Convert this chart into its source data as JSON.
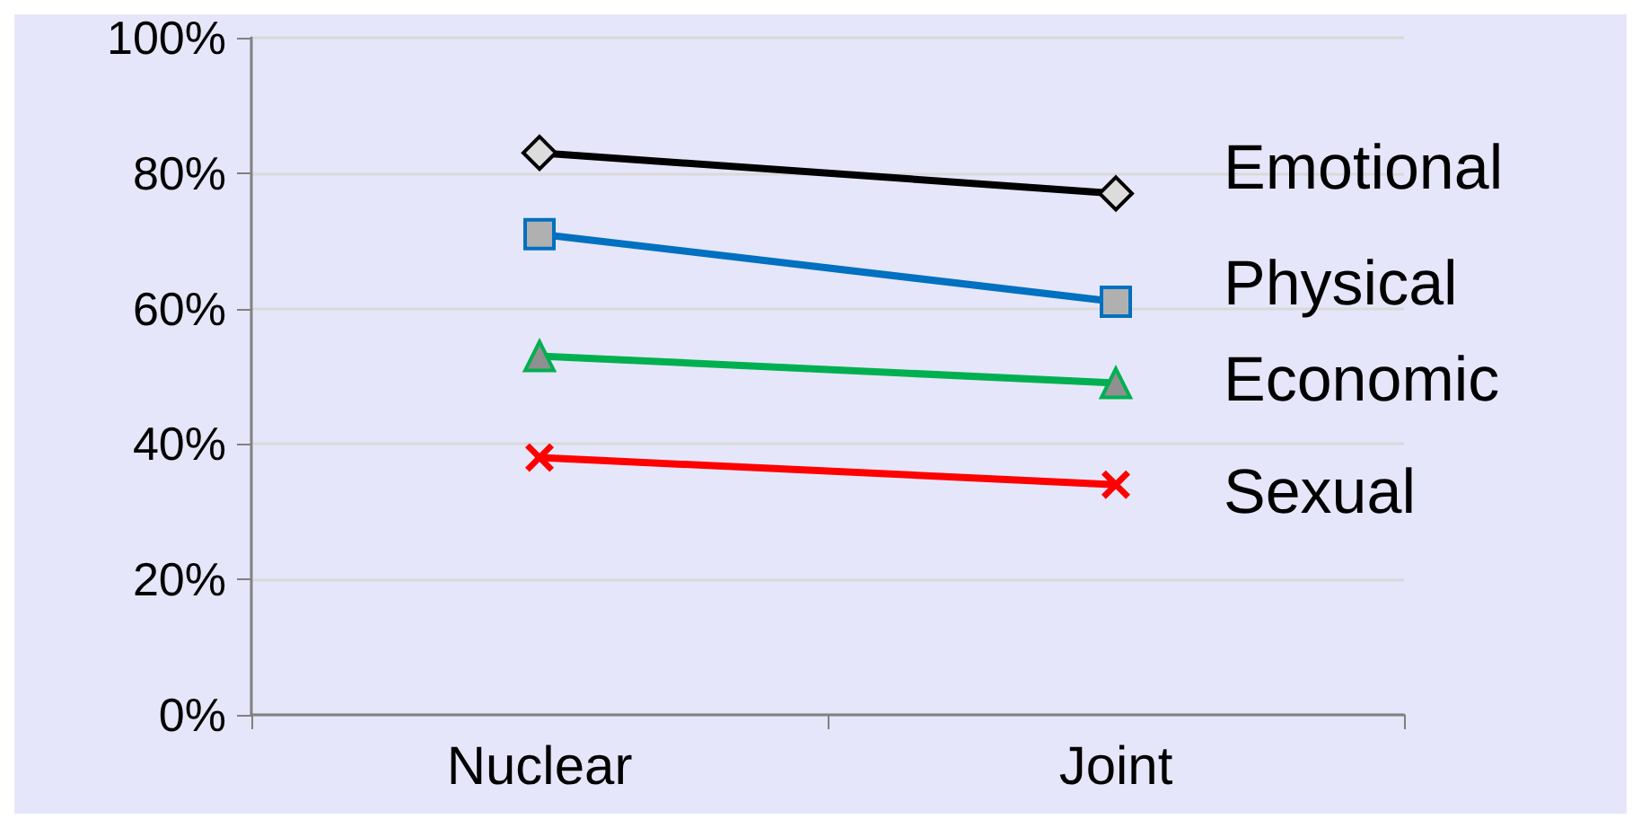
{
  "chart_data": {
    "type": "line",
    "categories": [
      "Nuclear",
      "Joint"
    ],
    "series": [
      {
        "name": "Emotional",
        "color": "#000000",
        "marker": "diamond",
        "values": [
          83,
          77
        ]
      },
      {
        "name": "Physical",
        "color": "#0070c0",
        "marker": "square",
        "values": [
          71,
          61
        ]
      },
      {
        "name": "Economic",
        "color": "#00b050",
        "marker": "triangle",
        "values": [
          53,
          49
        ]
      },
      {
        "name": "Sexual",
        "color": "#ff0000",
        "marker": "cross",
        "values": [
          38,
          34
        ]
      }
    ],
    "ylim": [
      0,
      100
    ],
    "yticks": [
      {
        "value": 0,
        "label": "0%"
      },
      {
        "value": 20,
        "label": "20%"
      },
      {
        "value": 40,
        "label": "40%"
      },
      {
        "value": 60,
        "label": "60%"
      },
      {
        "value": 80,
        "label": "80%"
      },
      {
        "value": 100,
        "label": "100%"
      }
    ],
    "grid": "y",
    "legend": "right",
    "line_style": "solid"
  }
}
